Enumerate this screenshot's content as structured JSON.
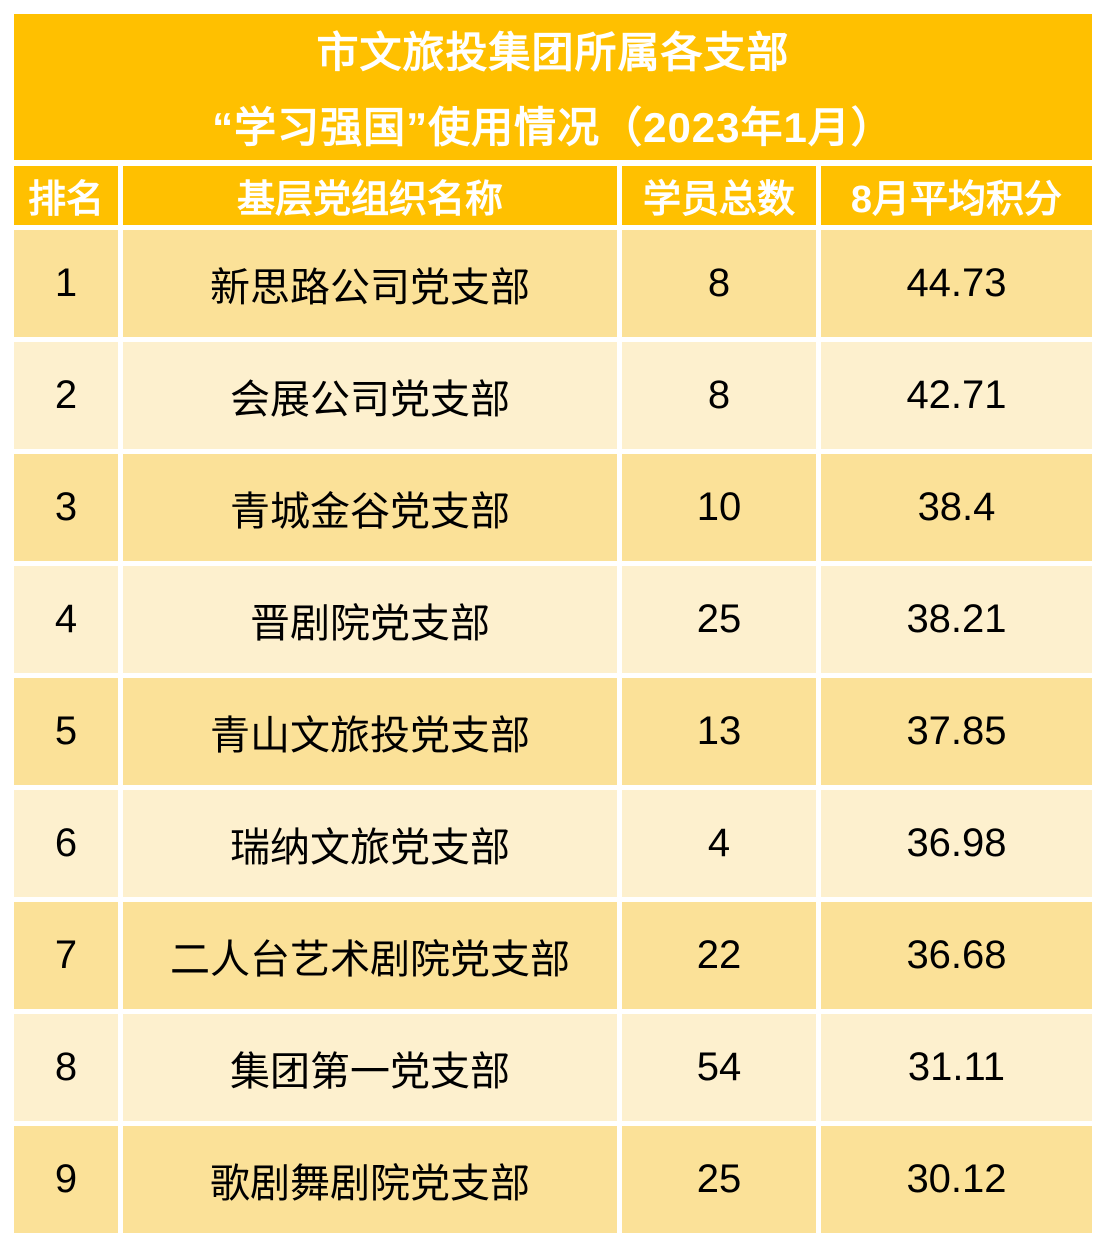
{
  "title": {
    "line1": "市文旅投集团所属各支部",
    "line2": "“学习强国”使用情况（2023年1月）"
  },
  "table": {
    "headers": {
      "rank": "排名",
      "org": "基层党组织名称",
      "members": "学员总数",
      "score": "8月平均积分"
    },
    "rows": [
      {
        "rank": "1",
        "org": "新思路公司党支部",
        "members": "8",
        "score": "44.73"
      },
      {
        "rank": "2",
        "org": "会展公司党支部",
        "members": "8",
        "score": "42.71"
      },
      {
        "rank": "3",
        "org": "青城金谷党支部",
        "members": "10",
        "score": "38.4"
      },
      {
        "rank": "4",
        "org": "晋剧院党支部",
        "members": "25",
        "score": "38.21"
      },
      {
        "rank": "5",
        "org": "青山文旅投党支部",
        "members": "13",
        "score": "37.85"
      },
      {
        "rank": "6",
        "org": "瑞纳文旅党支部",
        "members": "4",
        "score": "36.98"
      },
      {
        "rank": "7",
        "org": "二人台艺术剧院党支部",
        "members": "22",
        "score": "36.68"
      },
      {
        "rank": "8",
        "org": "集团第一党支部",
        "members": "54",
        "score": "31.11"
      },
      {
        "rank": "9",
        "org": "歌剧舞剧院党支部",
        "members": "25",
        "score": "30.12"
      }
    ]
  },
  "colors": {
    "banner": "#FFC000",
    "row_dark": "#FBE198",
    "row_light": "#FDF0CE",
    "banner_text": "#FFFFFF",
    "body_text": "#000000",
    "page_background": "#FFFFFF"
  },
  "chart_data": {
    "type": "table",
    "title": "市文旅投集团所属各支部“学习强国”使用情况（2023年1月）",
    "columns": [
      "排名",
      "基层党组织名称",
      "学员总数",
      "8月平均积分"
    ],
    "rows": [
      [
        1,
        "新思路公司党支部",
        8,
        44.73
      ],
      [
        2,
        "会展公司党支部",
        8,
        42.71
      ],
      [
        3,
        "青城金谷党支部",
        10,
        38.4
      ],
      [
        4,
        "晋剧院党支部",
        25,
        38.21
      ],
      [
        5,
        "青山文旅投党支部",
        13,
        37.85
      ],
      [
        6,
        "瑞纳文旅党支部",
        4,
        36.98
      ],
      [
        7,
        "二人台艺术剧院党支部",
        22,
        36.68
      ],
      [
        8,
        "集团第一党支部",
        54,
        31.11
      ],
      [
        9,
        "歌剧舞剧院党支部",
        25,
        30.12
      ]
    ]
  }
}
